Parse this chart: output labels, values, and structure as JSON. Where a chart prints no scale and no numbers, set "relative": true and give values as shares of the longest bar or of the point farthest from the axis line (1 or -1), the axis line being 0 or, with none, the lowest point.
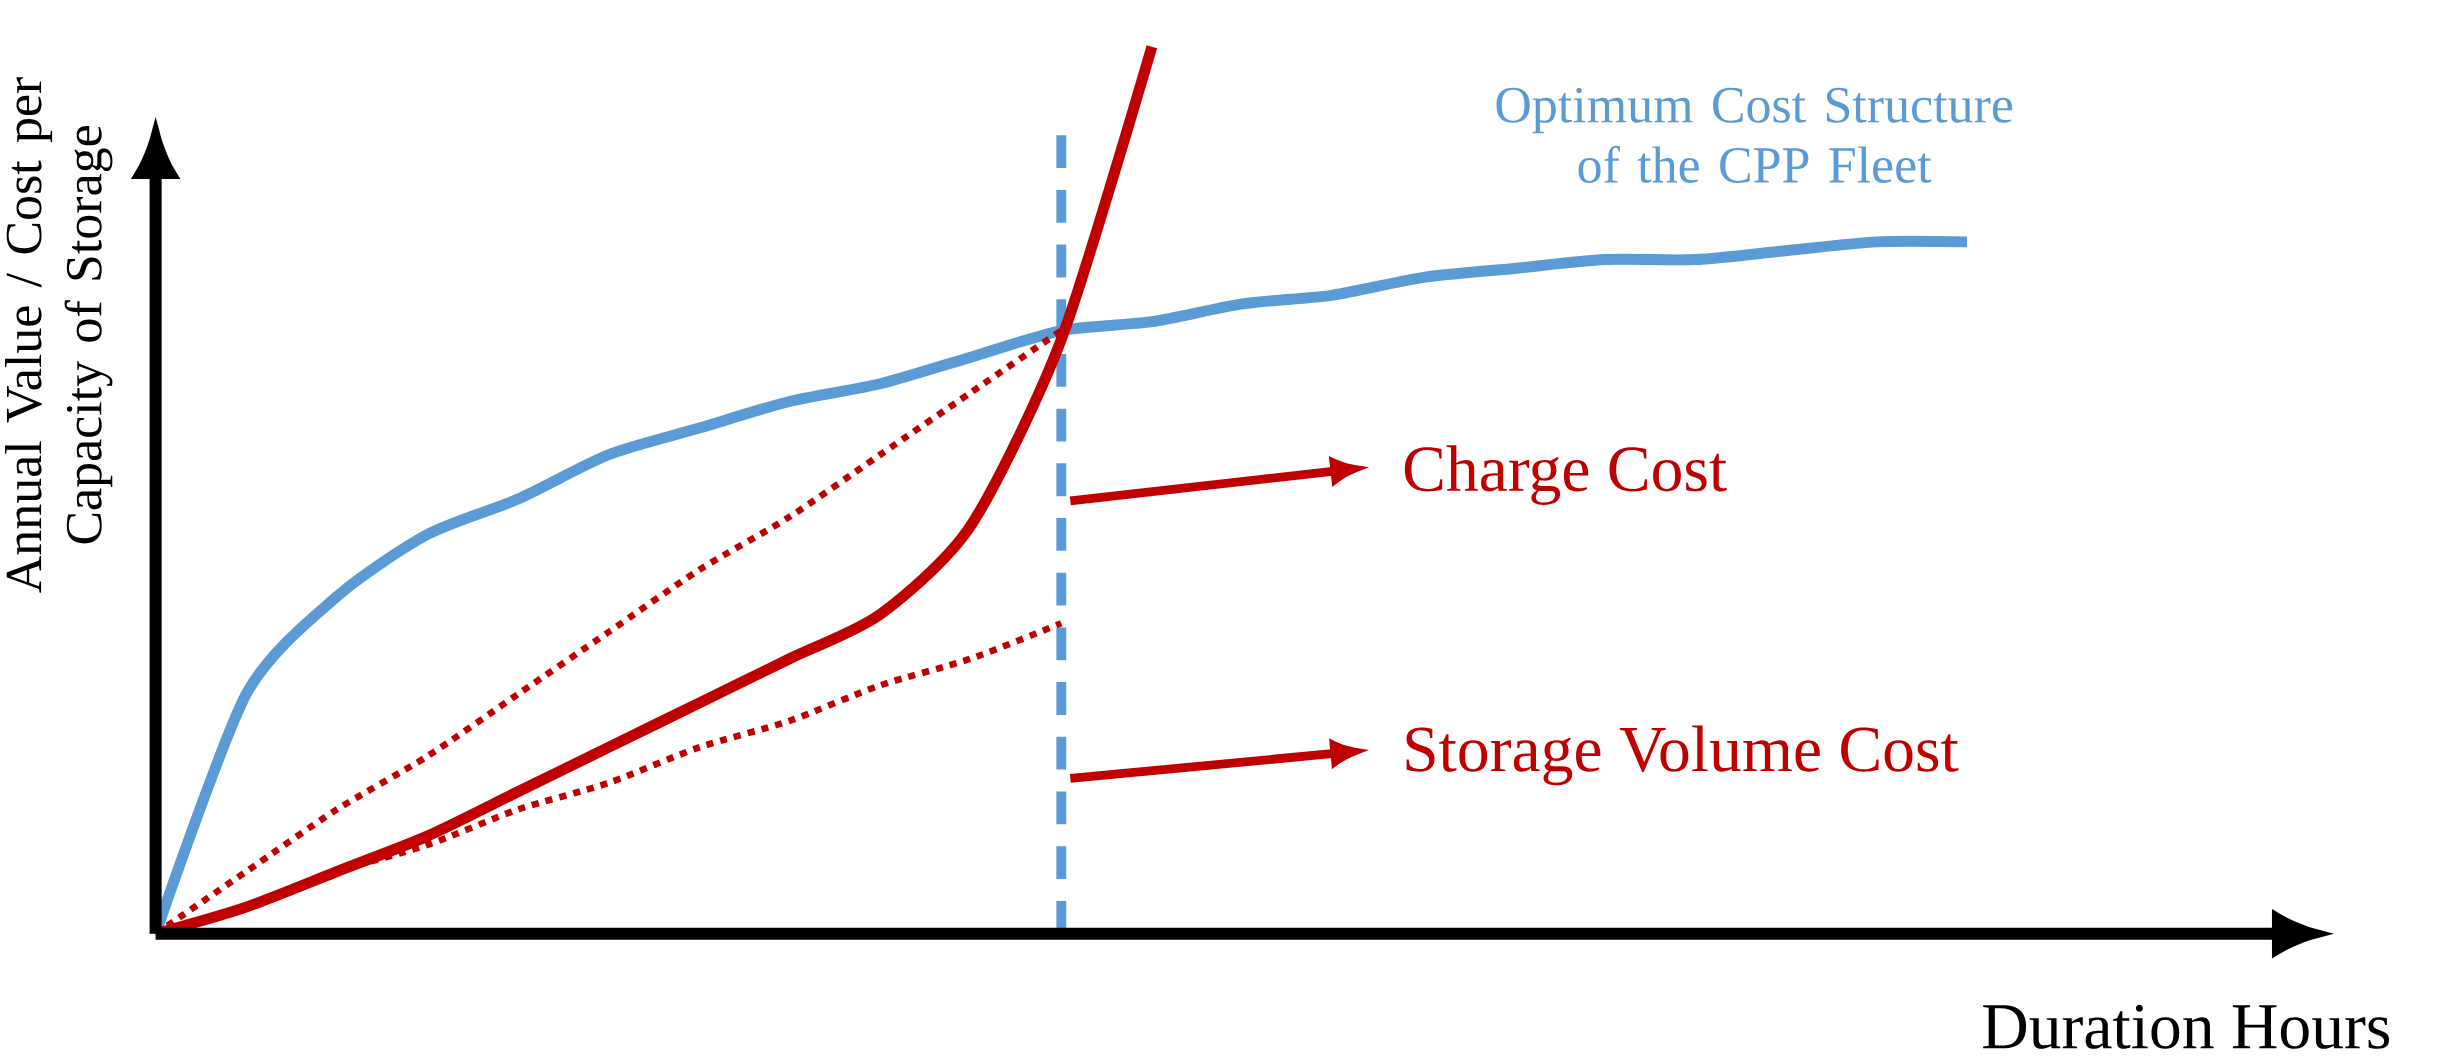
{
  "chart_data": {
    "type": "line",
    "relative": true,
    "xlabel": "Duration Hours",
    "ylabel": "Annual Value / Cost per Capacity of Storage",
    "categories": [
      null,
      null,
      null,
      null,
      null,
      null,
      null,
      null,
      null,
      null,
      null,
      null,
      null,
      null,
      null,
      null,
      null,
      null,
      null,
      null,
      null
    ],
    "series": [
      {
        "name": "Optimum Cost Structure of the CPP Fleet",
        "color": "#5b9bd5",
        "values": [
          0,
          0.27,
          0.38,
          0.45,
          0.49,
          0.54,
          0.57,
          0.6,
          0.62,
          0.65,
          0.68,
          0.69,
          0.71,
          0.72,
          0.74,
          0.75,
          0.76,
          0.76,
          0.77,
          0.78,
          0.78
        ]
      },
      {
        "color": "#c00000",
        "values": [
          0,
          0.03,
          0.07,
          0.11,
          0.16,
          0.21,
          0.26,
          0.31,
          0.36,
          0.46,
          0.67,
          1,
          null,
          null,
          null,
          null,
          null,
          null,
          null,
          null,
          null
        ]
      },
      {
        "color": "#c00000",
        "line_style": "dotted",
        "values": [
          0,
          0.07,
          0.14,
          0.2,
          0.27,
          0.34,
          0.41,
          0.47,
          0.54,
          0.61,
          0.68,
          null,
          null,
          null,
          null,
          null,
          null,
          null,
          null,
          null,
          null
        ]
      },
      {
        "color": "#c00000",
        "line_style": "dotted",
        "values": [
          0,
          0.03,
          0.07,
          0.1,
          0.14,
          0.17,
          0.21,
          0.24,
          0.28,
          0.31,
          0.35,
          null,
          null,
          null,
          null,
          null,
          null,
          null,
          null,
          null,
          null
        ]
      }
    ],
    "annotations": [
      "Charge Cost",
      "Storage Volume Cost"
    ],
    "line_style": "solid",
    "marker": "none"
  }
}
